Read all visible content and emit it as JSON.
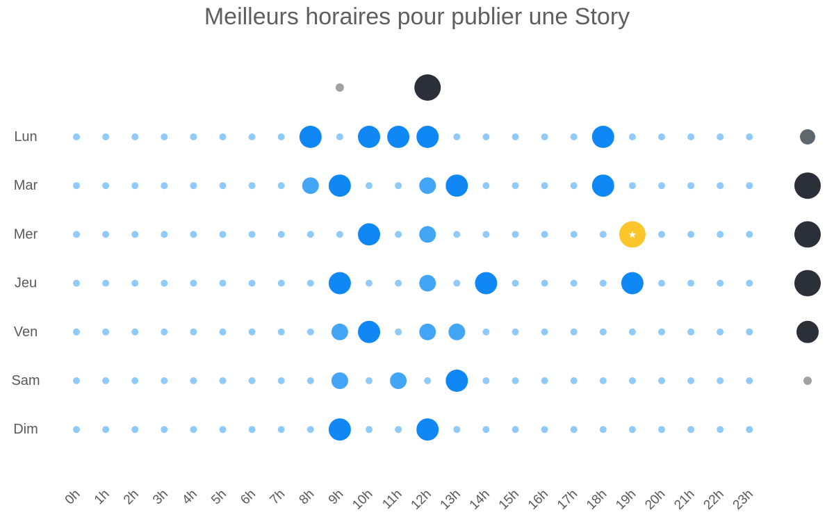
{
  "chart_data": {
    "type": "scatter",
    "title": "Meilleurs horaires pour publier une Story",
    "days": [
      "Lun",
      "Mar",
      "Mer",
      "Jeu",
      "Ven",
      "Sam",
      "Dim"
    ],
    "hours": [
      "0h",
      "1h",
      "2h",
      "3h",
      "4h",
      "5h",
      "6h",
      "7h",
      "8h",
      "9h",
      "10h",
      "11h",
      "12h",
      "13h",
      "14h",
      "15h",
      "16h",
      "17h",
      "18h",
      "19h",
      "20h",
      "21h",
      "22h",
      "23h"
    ],
    "levels": {
      "Lun": [
        1,
        1,
        1,
        1,
        1,
        1,
        1,
        1,
        3,
        1,
        3,
        3,
        3,
        1,
        1,
        1,
        1,
        1,
        3,
        1,
        1,
        1,
        1,
        1
      ],
      "Mar": [
        1,
        1,
        1,
        1,
        1,
        1,
        1,
        1,
        2,
        3,
        1,
        1,
        2,
        3,
        1,
        1,
        1,
        1,
        3,
        1,
        1,
        1,
        1,
        1
      ],
      "Mer": [
        1,
        1,
        1,
        1,
        1,
        1,
        1,
        1,
        1,
        1,
        3,
        1,
        2,
        1,
        1,
        1,
        1,
        1,
        1,
        3,
        1,
        1,
        1,
        1
      ],
      "Jeu": [
        1,
        1,
        1,
        1,
        1,
        1,
        1,
        1,
        1,
        3,
        1,
        1,
        2,
        1,
        3,
        1,
        1,
        1,
        1,
        3,
        1,
        1,
        1,
        1
      ],
      "Ven": [
        1,
        1,
        1,
        1,
        1,
        1,
        1,
        1,
        1,
        2,
        3,
        1,
        2,
        2,
        1,
        1,
        1,
        1,
        1,
        1,
        1,
        1,
        1,
        1
      ],
      "Sam": [
        1,
        1,
        1,
        1,
        1,
        1,
        1,
        1,
        1,
        2,
        1,
        2,
        1,
        3,
        1,
        1,
        1,
        1,
        1,
        1,
        1,
        1,
        1,
        1
      ],
      "Dim": [
        1,
        1,
        1,
        1,
        1,
        1,
        1,
        1,
        1,
        3,
        1,
        1,
        3,
        1,
        1,
        1,
        1,
        1,
        1,
        1,
        1,
        1,
        1,
        1
      ]
    },
    "best_slot": {
      "day": "Mer",
      "hour": "19h",
      "marker": "★"
    },
    "hour_totals": {
      "9h": 1,
      "12h": 4
    },
    "day_totals": {
      "Lun": 2,
      "Mar": 4,
      "Mer": 4,
      "Jeu": 4,
      "Ven": 3,
      "Sam": 1,
      "Dim": 0
    },
    "colors": {
      "level_1": "#90caf9",
      "level_2": "#42a5f5",
      "level_3": "#0f87f5",
      "best": "#fbc52b",
      "totals": [
        "#dcdfe3",
        "#a1a1a1",
        "#5f666d",
        "#2a2f38",
        "#2a2f38"
      ]
    }
  }
}
